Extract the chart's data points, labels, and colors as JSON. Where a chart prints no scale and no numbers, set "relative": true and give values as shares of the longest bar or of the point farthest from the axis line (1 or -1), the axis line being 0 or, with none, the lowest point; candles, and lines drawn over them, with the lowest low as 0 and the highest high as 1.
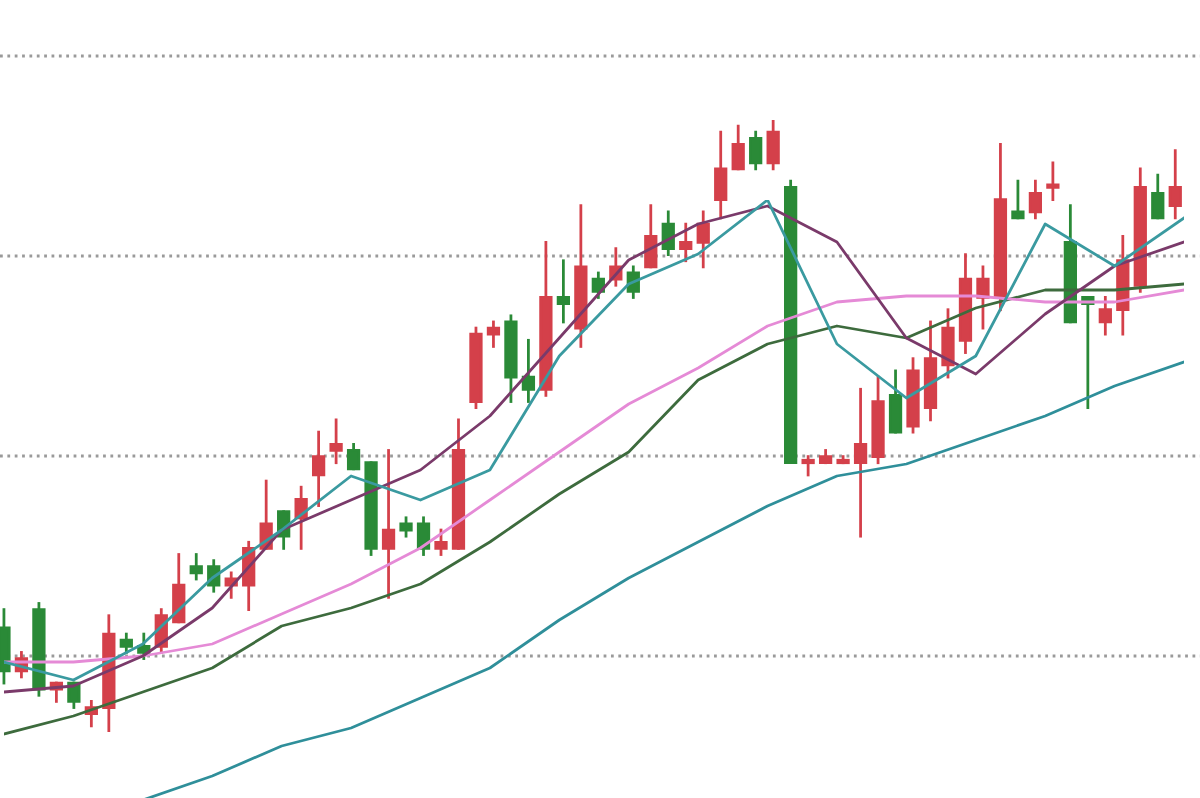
{
  "chart_data": [
    {
      "type": "candlestick",
      "relative": true,
      "grid": true,
      "categories": [
        null,
        null,
        null,
        null,
        null,
        null,
        null,
        null,
        null,
        null,
        null,
        null,
        null,
        null,
        null,
        null,
        null,
        null,
        null,
        null,
        null,
        null,
        null,
        null,
        null,
        null,
        null,
        null,
        null,
        null,
        null,
        null,
        null,
        null,
        null,
        null,
        null,
        null,
        null,
        null,
        null,
        null,
        null,
        null,
        null,
        null,
        null,
        null,
        null,
        null,
        null,
        null,
        null,
        null,
        null,
        null,
        null,
        null,
        null,
        null,
        null,
        null,
        null,
        null,
        null,
        null,
        null,
        null
      ],
      "ohlc": [
        [
          0.17,
          0.2,
          0.08,
          0.1
        ],
        [
          0.1,
          0.13,
          0.09,
          0.12
        ],
        [
          0.2,
          0.21,
          0.06,
          0.07
        ],
        [
          0.07,
          0.08,
          0.05,
          0.08
        ],
        [
          0.08,
          0.08,
          0.04,
          0.05
        ],
        [
          0.03,
          0.05,
          0.01,
          0.04
        ],
        [
          0.04,
          0.19,
          0,
          0.16
        ],
        [
          0.15,
          0.16,
          0.13,
          0.14
        ],
        [
          0.14,
          0.16,
          0.12,
          0.13
        ],
        [
          0.14,
          0.2,
          0.13,
          0.19
        ],
        [
          0.18,
          0.29,
          0.18,
          0.24
        ],
        [
          0.27,
          0.29,
          0.25,
          0.26
        ],
        [
          0.27,
          0.28,
          0.23,
          0.24
        ],
        [
          0.24,
          0.26,
          0.22,
          0.25
        ],
        [
          0.24,
          0.31,
          0.2,
          0.3
        ],
        [
          0.3,
          0.41,
          0.3,
          0.34
        ],
        [
          0.36,
          0.36,
          0.3,
          0.32
        ],
        [
          0.35,
          0.4,
          0.3,
          0.38
        ],
        [
          0.42,
          0.49,
          0.37,
          0.45
        ],
        [
          0.46,
          0.51,
          0.44,
          0.47
        ],
        [
          0.46,
          0.47,
          0.43,
          0.43
        ],
        [
          0.44,
          0.44,
          0.29,
          0.3
        ],
        [
          0.3,
          0.46,
          0.22,
          0.33
        ],
        [
          0.34,
          0.35,
          0.32,
          0.33
        ],
        [
          0.34,
          0.35,
          0.29,
          0.3
        ],
        [
          0.3,
          0.33,
          0.29,
          0.31
        ],
        [
          0.3,
          0.51,
          0.3,
          0.46
        ],
        [
          0.54,
          0.66,
          0.53,
          0.65
        ],
        [
          0.65,
          0.67,
          0.63,
          0.66
        ],
        [
          0.67,
          0.68,
          0.54,
          0.58
        ],
        [
          0.58,
          0.64,
          0.54,
          0.56
        ],
        [
          0.56,
          0.8,
          0.55,
          0.71
        ],
        [
          0.71,
          0.77,
          0.67,
          0.7
        ],
        [
          0.66,
          0.86,
          0.63,
          0.76
        ],
        [
          0.74,
          0.75,
          0.71,
          0.72
        ],
        [
          0.74,
          0.79,
          0.73,
          0.76
        ],
        [
          0.75,
          0.76,
          0.71,
          0.72
        ],
        [
          0.76,
          0.86,
          0.76,
          0.81
        ],
        [
          0.83,
          0.85,
          0.78,
          0.79
        ],
        [
          0.79,
          0.83,
          0.77,
          0.8
        ],
        [
          0.8,
          0.85,
          0.76,
          0.83
        ],
        [
          0.87,
          0.98,
          0.84,
          0.92
        ],
        [
          0.92,
          0.99,
          0.92,
          0.96
        ],
        [
          0.97,
          0.98,
          0.92,
          0.93
        ],
        [
          0.93,
          1.0,
          0.92,
          0.98
        ],
        [
          0.89,
          0.9,
          0.44,
          0.44
        ],
        [
          0.44,
          0.45,
          0.42,
          0.44
        ],
        [
          0.44,
          0.46,
          0.44,
          0.45
        ],
        [
          0.44,
          0.45,
          0.44,
          0.44
        ],
        [
          0.44,
          0.56,
          0.32,
          0.47
        ],
        [
          0.45,
          0.58,
          0.44,
          0.54
        ],
        [
          0.55,
          0.59,
          0.49,
          0.49
        ],
        [
          0.5,
          0.61,
          0.49,
          0.59
        ],
        [
          0.53,
          0.67,
          0.51,
          0.61
        ],
        [
          0.6,
          0.69,
          0.58,
          0.66
        ],
        [
          0.64,
          0.78,
          0.62,
          0.74
        ],
        [
          0.71,
          0.76,
          0.66,
          0.74
        ],
        [
          0.71,
          0.96,
          0.69,
          0.87
        ],
        [
          0.85,
          0.9,
          0.84,
          0.84
        ],
        [
          0.85,
          0.9,
          0.84,
          0.88
        ],
        [
          0.89,
          0.93,
          0.87,
          0.89
        ],
        [
          0.8,
          0.86,
          0.67,
          0.67
        ],
        [
          0.71,
          0.71,
          0.53,
          0.7
        ],
        [
          0.67,
          0.71,
          0.65,
          0.69
        ],
        [
          0.69,
          0.81,
          0.65,
          0.77
        ],
        [
          0.73,
          0.92,
          0.72,
          0.89
        ],
        [
          0.88,
          0.91,
          0.84,
          0.84
        ],
        [
          0.86,
          0.95,
          0.84,
          0.89
        ]
      ],
      "colors": [
        "#2a8a37",
        "#d4404a",
        "#2a8a37",
        "#d4404a",
        "#2a8a37",
        "#d4404a",
        "#d4404a",
        "#2a8a37",
        "#2a8a37",
        "#d4404a",
        "#d4404a",
        "#2a8a37",
        "#2a8a37",
        "#d4404a",
        "#d4404a",
        "#d4404a",
        "#2a8a37",
        "#d4404a",
        "#d4404a",
        "#d4404a",
        "#2a8a37",
        "#2a8a37",
        "#d4404a",
        "#2a8a37",
        "#2a8a37",
        "#d4404a",
        "#d4404a",
        "#d4404a",
        "#d4404a",
        "#2a8a37",
        "#2a8a37",
        "#d4404a",
        "#2a8a37",
        "#d4404a",
        "#2a8a37",
        "#d4404a",
        "#2a8a37",
        "#d4404a",
        "#2a8a37",
        "#d4404a",
        "#d4404a",
        "#d4404a",
        "#d4404a",
        "#2a8a37",
        "#d4404a",
        "#2a8a37",
        "#d4404a",
        "#d4404a",
        "#d4404a",
        "#d4404a",
        "#d4404a",
        "#2a8a37",
        "#d4404a",
        "#d4404a",
        "#d4404a",
        "#d4404a",
        "#d4404a",
        "#d4404a",
        "#2a8a37",
        "#d4404a",
        "#d4404a",
        "#2a8a37",
        "#2a8a37",
        "#d4404a",
        "#d4404a",
        "#d4404a",
        "#2a8a37",
        "#d4404a"
      ]
    },
    {
      "type": "line",
      "relative": true,
      "categories": [
        null,
        null,
        null,
        null,
        null,
        null,
        null,
        null,
        null,
        null,
        null,
        null,
        null,
        null,
        null,
        null,
        null,
        null
      ],
      "series": [
        {
          "color": "#2f8f9a",
          "values": [
            null,
            null,
            0,
            0.04,
            0.09,
            0.12,
            0.17,
            0.22,
            0.3,
            0.37,
            0.43,
            0.49,
            0.54,
            0.56,
            0.6,
            0.64,
            0.69,
            0.73
          ]
        },
        {
          "color": "#3d6b3d",
          "values": [
            0.11,
            0.14,
            0.18,
            0.22,
            0.29,
            0.32,
            0.36,
            0.43,
            0.51,
            0.58,
            0.7,
            0.76,
            0.79,
            0.77,
            0.82,
            0.85,
            0.85,
            0.86
          ]
        },
        {
          "color": "#e58ad6",
          "values": [
            0.23,
            0.23,
            0.24,
            0.26,
            0.31,
            0.36,
            0.42,
            0.5,
            0.58,
            0.66,
            0.72,
            0.79,
            0.83,
            0.84,
            0.84,
            0.83,
            0.83,
            0.85
          ]
        },
        {
          "color": "#7a3a6a",
          "values": [
            0.18,
            0.19,
            0.24,
            0.32,
            0.45,
            0.5,
            0.55,
            0.64,
            0.77,
            0.9,
            0.96,
            0.99,
            0.93,
            0.77,
            0.71,
            0.81,
            0.89,
            0.93
          ]
        },
        {
          "color": "#3a9aa0",
          "values": [
            0.23,
            0.2,
            0.26,
            0.37,
            0.45,
            0.54,
            0.5,
            0.55,
            0.74,
            0.86,
            0.91,
            1.0,
            0.76,
            0.67,
            0.74,
            0.96,
            0.89,
            0.97
          ]
        }
      ]
    }
  ]
}
